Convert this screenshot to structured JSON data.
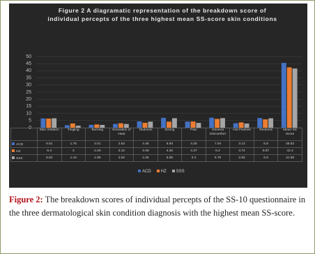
{
  "chart_data": {
    "type": "bar",
    "title": "Figure 2 A diagramatic representation of the breakdown score of individual percepts of the three highest mean SS-score skin conditions",
    "categories": [
      "Skin Irritation",
      "Tingling",
      "Burning",
      "Sensation of Heat",
      "Tautness",
      "Itching",
      "Pain",
      "General Discomfort",
      "Hot Flushes",
      "Redness",
      "Mean SS Score"
    ],
    "series": [
      {
        "name": "ACD",
        "color": "#4472c4",
        "values": [
          6.51,
          1.75,
          2.01,
          2.64,
          4.46,
          6.93,
          4.25,
          7.04,
          3.13,
          6.8,
          45.52
        ]
      },
      {
        "name": "HZ",
        "color": "#ed7d31",
        "values": [
          6.4,
          3,
          2.29,
          3.12,
          3.49,
          4.25,
          4.37,
          6.2,
          3.74,
          5.87,
          42.4
        ]
      },
      {
        "name": "SSS",
        "color": "#a5a5a5",
        "values": [
          6.62,
          1.44,
          1.96,
          2.62,
          4.25,
          6.68,
          3.4,
          6.75,
          2.92,
          6.6,
          41.58
        ]
      }
    ],
    "ylim": [
      0,
      50
    ],
    "yticks": [
      0,
      5,
      10,
      15,
      20,
      25,
      30,
      35,
      40,
      45,
      50
    ],
    "grid": true,
    "legend": "bottom"
  },
  "caption": {
    "label": "Figure 2:",
    "text": "The breakdown scores of individual percepts of the SS-10 questionnaire in the three dermatological skin condition diagnosis with the highest mean SS-score."
  }
}
